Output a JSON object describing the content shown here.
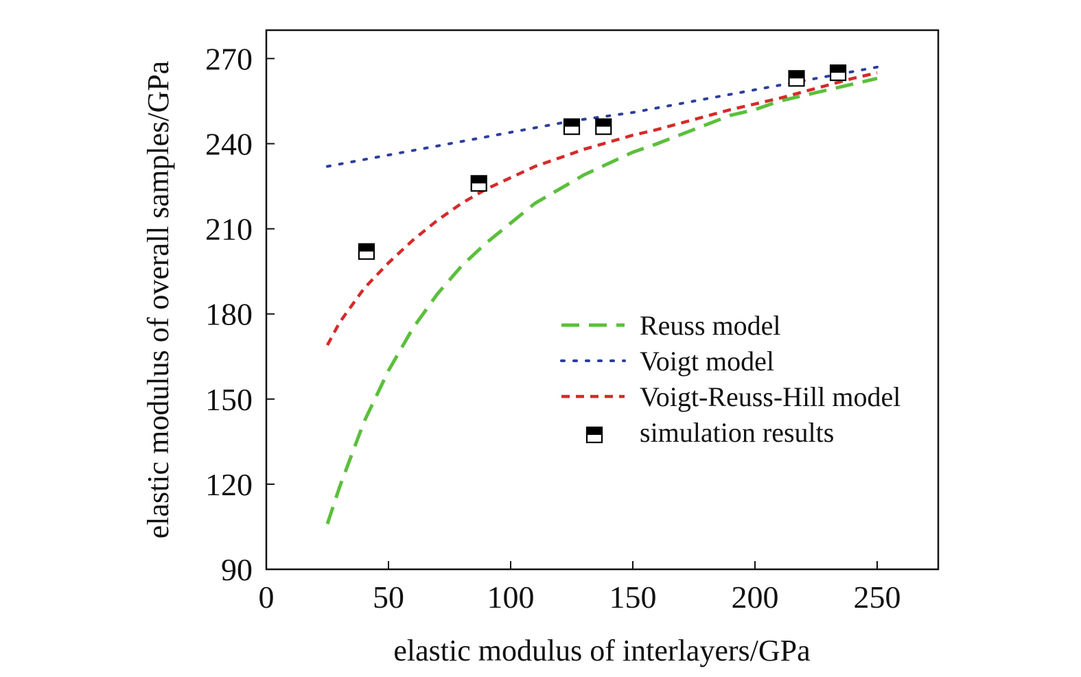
{
  "chart_data": {
    "type": "line",
    "title": "",
    "xlabel": "elastic modulus of interlayers/GPa",
    "ylabel": "elastic modulus of overall samples/GPa",
    "xlim": [
      0,
      275
    ],
    "ylim": [
      90,
      280
    ],
    "xticks": [
      0,
      50,
      100,
      150,
      200,
      250
    ],
    "yticks": [
      90,
      120,
      150,
      180,
      210,
      240,
      270
    ],
    "legend_position": "right-middle",
    "series": [
      {
        "name": "Reuss model",
        "style": "long-dash",
        "color": "#5bbf3c",
        "x": [
          25,
          30,
          40,
          50,
          60,
          70,
          80,
          90,
          100,
          110,
          120,
          130,
          140,
          150,
          160,
          175,
          190,
          200,
          210,
          225,
          240,
          250
        ],
        "y": [
          106,
          119,
          142,
          160,
          175,
          187,
          197,
          205,
          212,
          219,
          224,
          229,
          233,
          237,
          240,
          245,
          250,
          252,
          255,
          258,
          261,
          263
        ]
      },
      {
        "name": "Voigt model",
        "style": "dotted",
        "color": "#2c3e9e",
        "x": [
          25,
          50,
          75,
          100,
          125,
          150,
          175,
          200,
          225,
          250
        ],
        "y": [
          232,
          236,
          240,
          244,
          248,
          251,
          255,
          259,
          263,
          267
        ]
      },
      {
        "name": "Voigt-Reuss-Hill model",
        "style": "short-dash",
        "color": "#d62a2a",
        "x": [
          25,
          30,
          40,
          50,
          60,
          70,
          80,
          90,
          100,
          110,
          120,
          130,
          140,
          150,
          160,
          175,
          190,
          200,
          210,
          225,
          240,
          250
        ],
        "y": [
          169,
          177,
          189,
          198,
          206,
          213,
          219,
          224,
          228,
          232,
          235,
          238,
          240.5,
          243,
          245,
          248.5,
          252,
          254,
          256,
          259.5,
          263,
          265
        ]
      },
      {
        "name": "simulation results",
        "style": "markers",
        "color": "#000000",
        "x": [
          41,
          87,
          125,
          138,
          217,
          234
        ],
        "y": [
          202,
          226,
          246,
          246,
          263,
          265
        ]
      }
    ]
  }
}
